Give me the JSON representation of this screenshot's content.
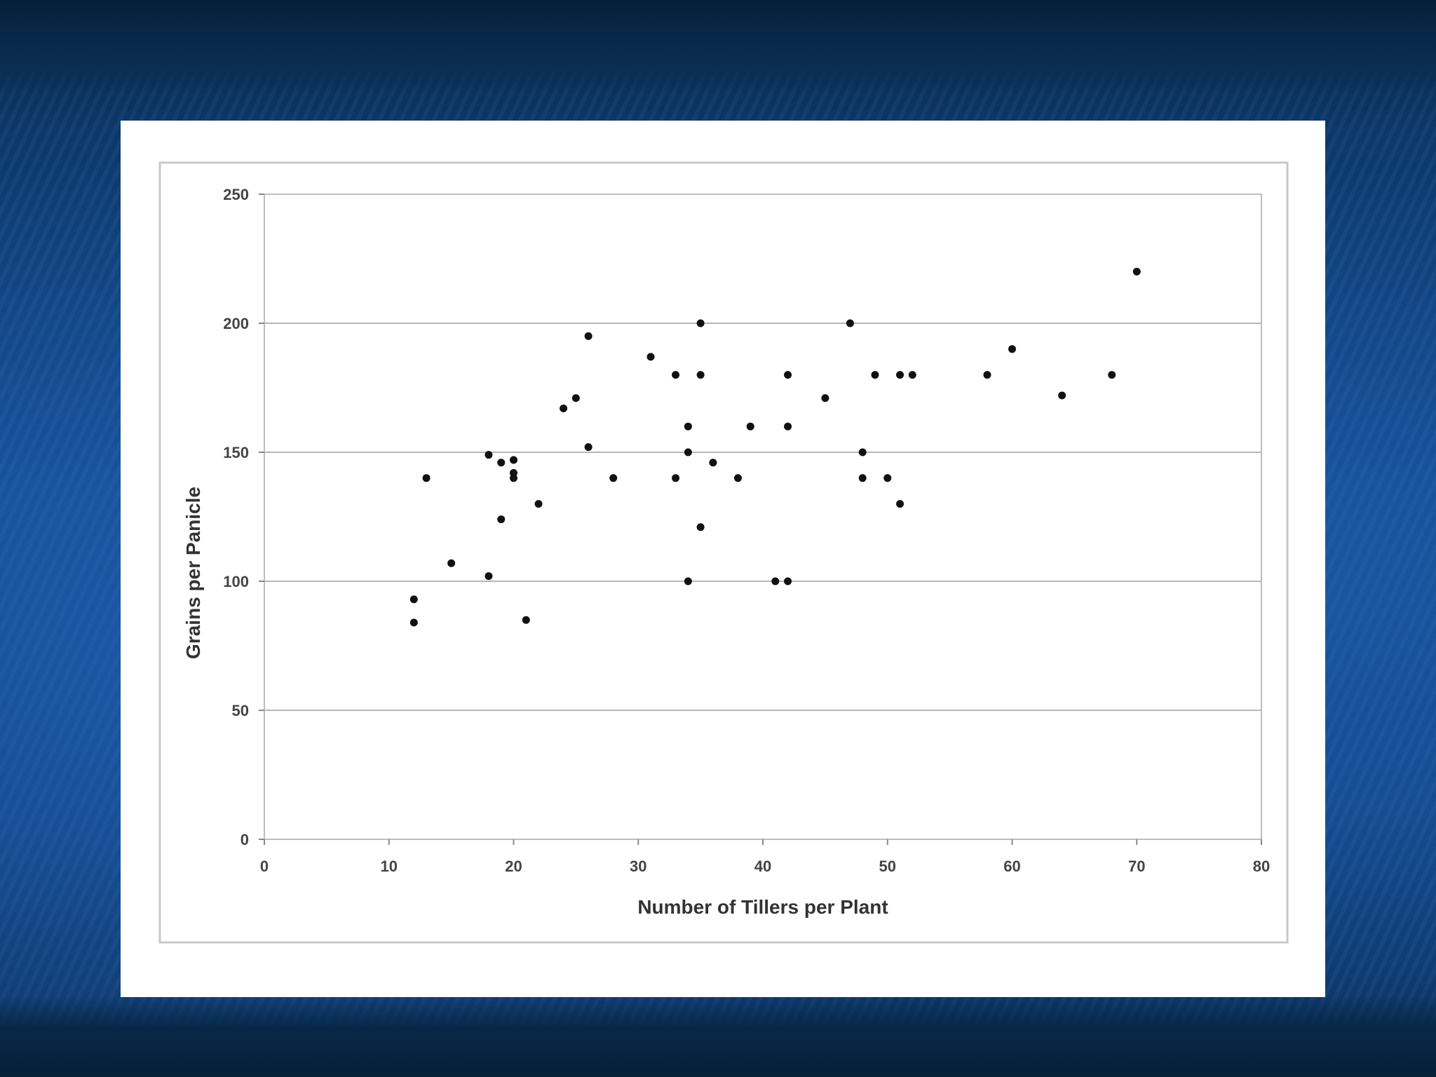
{
  "chart_data": {
    "type": "scatter",
    "title": "",
    "xlabel": "Number of Tillers per Plant",
    "ylabel": "Grains per Panicle",
    "xlim": [
      0,
      80
    ],
    "ylim": [
      0,
      250
    ],
    "x_ticks": [
      "0",
      "10",
      "20",
      "30",
      "40",
      "50",
      "60",
      "70",
      "80"
    ],
    "y_ticks": [
      "0",
      "50",
      "100",
      "150",
      "200",
      "250"
    ],
    "grid": "horizontal",
    "legend": "none",
    "marker_color": "#111111",
    "points": [
      {
        "x": 12,
        "y": 93
      },
      {
        "x": 12,
        "y": 84
      },
      {
        "x": 13,
        "y": 140
      },
      {
        "x": 15,
        "y": 107
      },
      {
        "x": 18,
        "y": 149
      },
      {
        "x": 18,
        "y": 102
      },
      {
        "x": 19,
        "y": 146
      },
      {
        "x": 19,
        "y": 124
      },
      {
        "x": 20,
        "y": 147
      },
      {
        "x": 20,
        "y": 142
      },
      {
        "x": 20,
        "y": 140
      },
      {
        "x": 21,
        "y": 85
      },
      {
        "x": 22,
        "y": 130
      },
      {
        "x": 24,
        "y": 167
      },
      {
        "x": 25,
        "y": 171
      },
      {
        "x": 26,
        "y": 195
      },
      {
        "x": 26,
        "y": 152
      },
      {
        "x": 28,
        "y": 140
      },
      {
        "x": 31,
        "y": 187
      },
      {
        "x": 33,
        "y": 180
      },
      {
        "x": 33,
        "y": 140
      },
      {
        "x": 34,
        "y": 160
      },
      {
        "x": 34,
        "y": 150
      },
      {
        "x": 34,
        "y": 100
      },
      {
        "x": 35,
        "y": 200
      },
      {
        "x": 35,
        "y": 180
      },
      {
        "x": 35,
        "y": 121
      },
      {
        "x": 36,
        "y": 146
      },
      {
        "x": 38,
        "y": 140
      },
      {
        "x": 39,
        "y": 160
      },
      {
        "x": 41,
        "y": 100
      },
      {
        "x": 42,
        "y": 180
      },
      {
        "x": 42,
        "y": 160
      },
      {
        "x": 42,
        "y": 100
      },
      {
        "x": 45,
        "y": 171
      },
      {
        "x": 47,
        "y": 200
      },
      {
        "x": 48,
        "y": 150
      },
      {
        "x": 48,
        "y": 140
      },
      {
        "x": 49,
        "y": 180
      },
      {
        "x": 50,
        "y": 140
      },
      {
        "x": 51,
        "y": 180
      },
      {
        "x": 51,
        "y": 130
      },
      {
        "x": 52,
        "y": 180
      },
      {
        "x": 58,
        "y": 180
      },
      {
        "x": 60,
        "y": 190
      },
      {
        "x": 64,
        "y": 172
      },
      {
        "x": 68,
        "y": 180
      },
      {
        "x": 70,
        "y": 220
      }
    ]
  }
}
